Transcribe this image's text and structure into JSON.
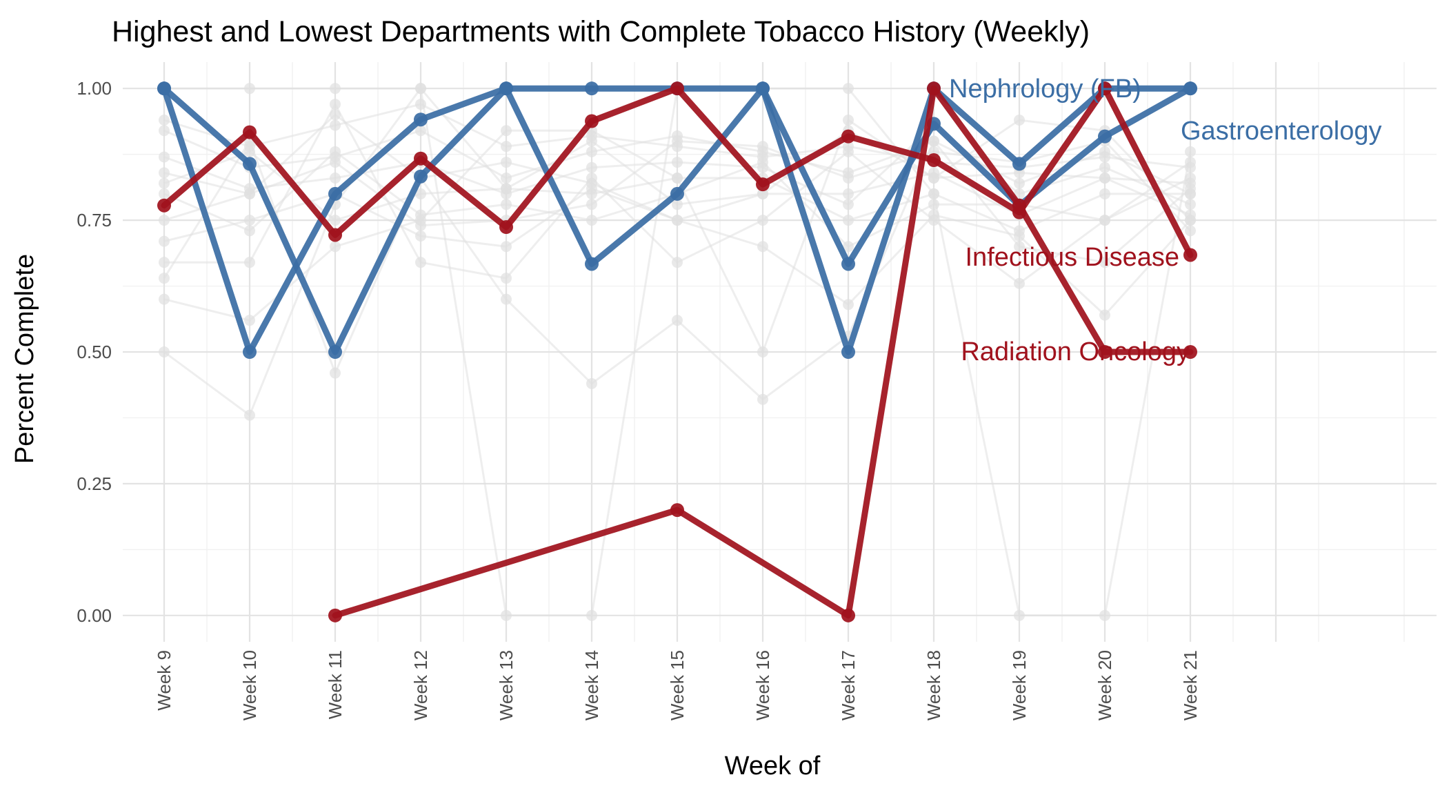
{
  "chart_data": {
    "type": "line",
    "title": "Highest and Lowest Departments with Complete Tobacco History (Weekly)",
    "xlabel": "Week of",
    "ylabel": "Percent Complete",
    "categories": [
      "Week 9",
      "Week 10",
      "Week 11",
      "Week 12",
      "Week 13",
      "Week 14",
      "Week 15",
      "Week 16",
      "Week 17",
      "Week 18",
      "Week 19",
      "Week 20",
      "Week 21"
    ],
    "ylim": [
      -0.05,
      1.05
    ],
    "yticks": [
      0.0,
      0.25,
      0.5,
      0.75,
      1.0
    ],
    "ytick_labels": [
      "0.00",
      "0.25",
      "0.50",
      "0.75",
      "1.00"
    ],
    "grid": true,
    "legend": "none",
    "colors": {
      "highlight_high": "#3b6ea5",
      "highlight_low": "#a0121d",
      "background_series": "#e0e0e0"
    },
    "series": [
      {
        "name": "Nephrology (FB)",
        "group": "high",
        "values": [
          1.0,
          0.857,
          0.5,
          0.833,
          1.0,
          1.0,
          1.0,
          1.0,
          0.5,
          1.0,
          0.857,
          1.0,
          1.0
        ]
      },
      {
        "name": "Gastroenterology",
        "group": "high",
        "values": [
          1.0,
          0.5,
          0.8,
          0.941,
          1.0,
          0.667,
          0.8,
          1.0,
          0.667,
          0.933,
          0.778,
          0.909,
          1.0
        ]
      },
      {
        "name": "Infectious Disease",
        "group": "low",
        "values": [
          0.778,
          0.917,
          0.722,
          0.867,
          0.737,
          0.938,
          1.0,
          0.818,
          0.909,
          0.864,
          0.765,
          1.0,
          0.684
        ]
      },
      {
        "name": "Radiation Oncology",
        "group": "low",
        "values": [
          null,
          null,
          0.0,
          null,
          null,
          null,
          0.2,
          null,
          0.0,
          1.0,
          0.778,
          0.5,
          0.5
        ]
      }
    ],
    "background_series": [
      {
        "values": [
          0.94,
          0.89,
          0.93,
          0.97,
          0.89,
          0.91,
          0.89,
          0.87,
          0.89,
          0.86,
          0.85,
          0.87,
          0.85
        ]
      },
      {
        "values": [
          0.92,
          0.85,
          0.87,
          0.92,
          0.83,
          0.88,
          0.91,
          0.88,
          0.84,
          0.9,
          0.82,
          0.88,
          0.8
        ]
      },
      {
        "values": [
          0.87,
          0.81,
          0.83,
          0.86,
          0.8,
          0.85,
          0.86,
          0.85,
          0.78,
          0.93,
          0.8,
          0.85,
          0.78
        ]
      },
      {
        "values": [
          0.84,
          0.8,
          0.95,
          0.83,
          0.86,
          0.82,
          0.75,
          0.8,
          0.8,
          0.84,
          0.76,
          0.83,
          0.76
        ]
      },
      {
        "values": [
          0.82,
          0.88,
          0.75,
          0.8,
          0.81,
          0.8,
          0.83,
          0.83,
          0.75,
          0.8,
          0.73,
          0.8,
          0.8
        ]
      },
      {
        "values": [
          0.8,
          0.73,
          0.88,
          0.76,
          0.78,
          0.75,
          0.8,
          0.86,
          0.7,
          0.78,
          0.78,
          0.75,
          0.83
        ]
      },
      {
        "values": [
          0.75,
          0.8,
          0.86,
          0.74,
          0.75,
          0.78,
          0.9,
          0.89,
          0.83,
          0.88,
          0.86,
          0.9,
          0.73
        ]
      },
      {
        "values": [
          0.71,
          0.75,
          0.8,
          0.72,
          0.7,
          0.81,
          0.75,
          0.7,
          0.59,
          0.76,
          0.72,
          0.57,
          0.75
        ]
      },
      {
        "values": [
          0.67,
          0.67,
          0.97,
          0.67,
          0.64,
          0.83,
          0.67,
          0.75,
          0.88,
          0.75,
          0.63,
          0.75,
          0.86
        ]
      },
      {
        "values": [
          0.64,
          0.9,
          0.46,
          0.83,
          0.6,
          0.44,
          0.56,
          0.41,
          0.53,
          0.9,
          0.7,
          0.67,
          0.81
        ]
      },
      {
        "values": [
          0.6,
          0.56,
          0.7,
          0.75,
          0.92,
          0.92,
          0.83,
          0.5,
          0.94,
          0.83,
          0.94,
          0.92,
          0.75
        ]
      },
      {
        "values": [
          0.5,
          0.38,
          0.78,
          1.0,
          0.0,
          0.0,
          1.0,
          1.0,
          1.0,
          0.8,
          0.0,
          0.0,
          0.88
        ]
      },
      {
        "values": [
          1.0,
          1.0,
          1.0,
          1.0,
          0.81,
          0.9,
          0.78,
          0.8,
          0.92,
          0.83,
          0.84,
          0.83,
          0.82
        ]
      }
    ]
  }
}
